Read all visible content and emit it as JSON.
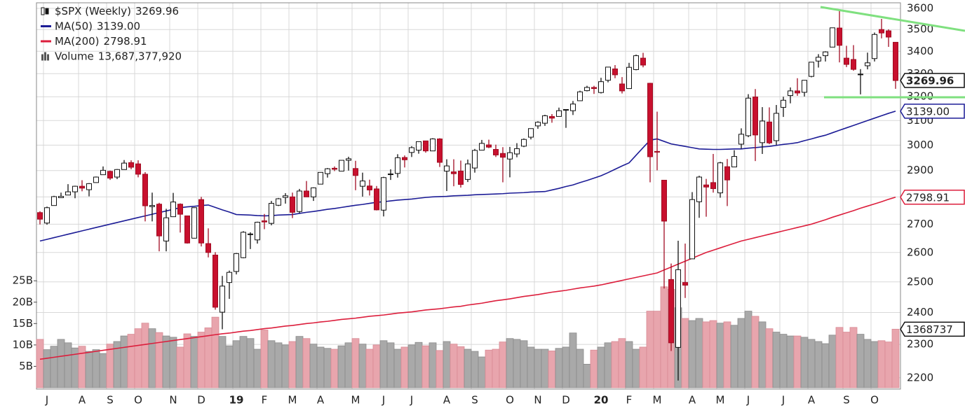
{
  "chart_data": {
    "type": "candlestick",
    "log": true,
    "grid": true,
    "ylim": [
      2167,
      3627
    ],
    "yticks": [
      2200,
      2300,
      2400,
      2500,
      2600,
      2700,
      2800,
      2900,
      3000,
      3100,
      3200,
      3300,
      3400,
      3500,
      3600
    ],
    "y2lim": [
      0,
      90
    ],
    "y2ticks": [
      {
        "value": 5,
        "label": "5B"
      },
      {
        "value": 10,
        "label": "10B"
      },
      {
        "value": 15,
        "label": "15B"
      },
      {
        "value": 20,
        "label": "20B"
      },
      {
        "value": 25,
        "label": "25B"
      }
    ],
    "categories": [
      null,
      "J",
      null,
      null,
      null,
      null,
      "A",
      null,
      null,
      null,
      "S",
      null,
      null,
      null,
      "O",
      null,
      null,
      null,
      null,
      "N",
      null,
      null,
      null,
      "D",
      null,
      null,
      null,
      null,
      "19",
      null,
      null,
      null,
      "F",
      null,
      null,
      null,
      "M",
      null,
      null,
      null,
      "A",
      null,
      null,
      null,
      null,
      "M",
      null,
      null,
      null,
      "J",
      null,
      null,
      null,
      "J",
      null,
      null,
      null,
      null,
      "A",
      null,
      null,
      null,
      "S",
      null,
      null,
      null,
      null,
      "O",
      null,
      null,
      null,
      "N",
      null,
      null,
      null,
      "D",
      null,
      null,
      null,
      null,
      "20",
      null,
      null,
      null,
      "F",
      null,
      null,
      null,
      "M",
      null,
      null,
      null,
      null,
      "A",
      null,
      null,
      null,
      "M",
      null,
      null,
      null,
      "J",
      null,
      null,
      null,
      null,
      "J",
      null,
      null,
      null,
      "A",
      null,
      null,
      null,
      null,
      "S",
      null,
      null,
      null,
      "O",
      null,
      null,
      null
    ],
    "series": [
      {
        "name": "$SPX (Weekly)",
        "type": "candlestick",
        "last_label": "3269.96",
        "up_color": "#ffffff",
        "down_color": "#c8102e",
        "open": [
          2742,
          2704,
          2768,
          2797,
          2807,
          2819,
          2840,
          2827,
          2854,
          2884,
          2897,
          2875,
          2904,
          2931,
          2926,
          2886,
          2764,
          2773,
          2640,
          2727,
          2773,
          2730,
          2650,
          2790,
          2631,
          2591,
          2401,
          2498,
          2535,
          2582,
          2664,
          2644,
          2712,
          2703,
          2769,
          2798,
          2800,
          2746,
          2822,
          2800,
          2848,
          2888,
          2909,
          2898,
          2940,
          2908,
          2840,
          2841,
          2830,
          2751,
          2886,
          2889,
          2951,
          2971,
          2980,
          3017,
          2977,
          3025,
          2898,
          2895,
          2898,
          2866,
          2910,
          2980,
          3001,
          2983,
          2967,
          2945,
          2965,
          2996,
          3032,
          3078,
          3089,
          3117,
          3117,
          3144,
          3141,
          3183,
          3226,
          3240,
          3218,
          3271,
          3321,
          3255,
          3235,
          3318,
          3369,
          3258,
          2975,
          2863,
          2508,
          2291,
          2498,
          2578,
          2782,
          2845,
          2854,
          2815,
          2915,
          2914,
          3004,
          3038,
          3199,
          3010,
          3094,
          3018,
          3155,
          3205,
          3225,
          3219,
          3288,
          3356,
          3380,
          3419,
          3507,
          3369,
          3363,
          3295,
          3335,
          3367,
          3500,
          3494,
          3441
        ],
        "high": [
          2747,
          2764,
          2804,
          2816,
          2848,
          2842,
          2863,
          2852,
          2877,
          2916,
          2900,
          2906,
          2941,
          2940,
          2940,
          2894,
          2816,
          2778,
          2756,
          2815,
          2776,
          2730,
          2760,
          2800,
          2685,
          2601,
          2520,
          2538,
          2598,
          2675,
          2671,
          2709,
          2737,
          2785,
          2796,
          2814,
          2816,
          2830,
          2860,
          2836,
          2893,
          2910,
          2916,
          2940,
          2954,
          2938,
          2892,
          2865,
          2841,
          2876,
          2905,
          2964,
          2959,
          2996,
          3014,
          3018,
          3028,
          3028,
          2944,
          2944,
          2939,
          2943,
          2985,
          3021,
          3022,
          3002,
          2992,
          2993,
          3008,
          3027,
          3067,
          3097,
          3124,
          3127,
          3154,
          3146,
          3182,
          3226,
          3247,
          3247,
          3282,
          3329,
          3338,
          3285,
          3348,
          3385,
          3393,
          3260,
          3137,
          2863,
          2562,
          2641,
          2631,
          2818,
          2880,
          2868,
          2965,
          2934,
          2945,
          2980,
          3068,
          3211,
          3233,
          3156,
          3155,
          3165,
          3200,
          3240,
          3280,
          3272,
          3352,
          3387,
          3400,
          3509,
          3588,
          3425,
          3428,
          3320,
          3394,
          3486,
          3550,
          3501,
          3441
        ],
        "low": [
          2699,
          2698,
          2768,
          2796,
          2808,
          2795,
          2821,
          2802,
          2853,
          2884,
          2864,
          2867,
          2904,
          2905,
          2874,
          2710,
          2710,
          2604,
          2604,
          2726,
          2670,
          2631,
          2649,
          2621,
          2583,
          2409,
          2347,
          2444,
          2525,
          2580,
          2612,
          2631,
          2682,
          2696,
          2766,
          2775,
          2722,
          2740,
          2800,
          2785,
          2848,
          2873,
          2898,
          2898,
          2900,
          2825,
          2801,
          2805,
          2750,
          2728,
          2864,
          2873,
          2912,
          2953,
          2966,
          2970,
          2976,
          2914,
          2822,
          2840,
          2835,
          2856,
          2892,
          2979,
          2988,
          2953,
          2855,
          2874,
          2952,
          2992,
          3023,
          3066,
          3078,
          3091,
          3117,
          3070,
          3123,
          3183,
          3223,
          3212,
          3214,
          3262,
          3280,
          3214,
          3235,
          3315,
          3328,
          2855,
          2901,
          2478,
          2280,
          2192,
          2447,
          2578,
          2723,
          2727,
          2816,
          2797,
          2766,
          2914,
          2986,
          3032,
          2937,
          2965,
          3004,
          3000,
          3115,
          3172,
          3204,
          3201,
          3284,
          3327,
          3354,
          3419,
          3350,
          3329,
          3313,
          3210,
          3319,
          3354,
          3459,
          3420,
          3234
        ],
        "close": [
          2718,
          2760,
          2801,
          2802,
          2819,
          2840,
          2833,
          2850,
          2875,
          2901,
          2871,
          2904,
          2929,
          2913,
          2886,
          2767,
          2768,
          2658,
          2723,
          2781,
          2736,
          2633,
          2760,
          2633,
          2600,
          2417,
          2486,
          2532,
          2596,
          2671,
          2665,
          2707,
          2708,
          2776,
          2793,
          2804,
          2743,
          2822,
          2800,
          2834,
          2893,
          2907,
          2905,
          2940,
          2946,
          2881,
          2860,
          2826,
          2752,
          2873,
          2887,
          2950,
          2942,
          2990,
          3014,
          2977,
          3025,
          2932,
          2918,
          2888,
          2847,
          2926,
          2979,
          3007,
          2992,
          2961,
          2952,
          2970,
          2986,
          3023,
          3067,
          3093,
          3120,
          3110,
          3141,
          3146,
          3169,
          3221,
          3240,
          3235,
          3265,
          3329,
          3295,
          3225,
          3328,
          3380,
          3338,
          2954,
          2972,
          2711,
          2305,
          2541,
          2489,
          2790,
          2875,
          2837,
          2831,
          2930,
          2864,
          2955,
          3044,
          3194,
          3041,
          3098,
          3009,
          3130,
          3185,
          3225,
          3216,
          3271,
          3351,
          3373,
          3397,
          3508,
          3427,
          3341,
          3319,
          3298,
          3348,
          3477,
          3484,
          3465,
          3269.96
        ]
      },
      {
        "name": "MA(50)",
        "type": "line",
        "color": "#1c1c96",
        "last_label": "3139.00",
        "values": [
          2640,
          2646,
          2652,
          2658,
          2664,
          2670,
          2676,
          2682,
          2688,
          2694,
          2700,
          2706,
          2712,
          2718,
          2724,
          2730,
          2736,
          2742,
          2748,
          2754,
          2760,
          2763,
          2765,
          2768,
          2770,
          2761,
          2752,
          2744,
          2735,
          2734,
          2733,
          2731,
          2730,
          2731,
          2733,
          2734,
          2735,
          2739,
          2743,
          2746,
          2750,
          2754,
          2757,
          2761,
          2765,
          2769,
          2772,
          2776,
          2780,
          2782,
          2785,
          2788,
          2790,
          2792,
          2795,
          2798,
          2800,
          2801,
          2802,
          2804,
          2805,
          2806,
          2808,
          2809,
          2810,
          2811,
          2812,
          2814,
          2815,
          2816,
          2818,
          2819,
          2820,
          2826,
          2832,
          2839,
          2845,
          2854,
          2862,
          2871,
          2880,
          2892,
          2905,
          2918,
          2930,
          2960,
          2990,
          3020,
          3025,
          3015,
          3005,
          3000,
          2995,
          2990,
          2985,
          2984,
          2983,
          2983,
          2984,
          2985,
          2985,
          2988,
          2990,
          2993,
          2995,
          2999,
          3003,
          3006,
          3010,
          3018,
          3025,
          3033,
          3040,
          3050,
          3060,
          3070,
          3080,
          3090,
          3100,
          3110,
          3120,
          3130,
          3139
        ]
      },
      {
        "name": "MA(200)",
        "type": "line",
        "color": "#dc1e3c",
        "last_label": "2798.91",
        "values": [
          2255,
          2258,
          2261,
          2264,
          2267,
          2270,
          2273,
          2276,
          2279,
          2282,
          2285,
          2288,
          2291,
          2294,
          2297,
          2300,
          2303,
          2306,
          2309,
          2312,
          2315,
          2318,
          2321,
          2324,
          2327,
          2330,
          2333,
          2335,
          2338,
          2341,
          2343,
          2346,
          2349,
          2351,
          2354,
          2357,
          2359,
          2362,
          2365,
          2367,
          2370,
          2372,
          2375,
          2378,
          2380,
          2382,
          2385,
          2388,
          2390,
          2392,
          2395,
          2398,
          2400,
          2402,
          2405,
          2408,
          2410,
          2412,
          2415,
          2418,
          2420,
          2424,
          2427,
          2430,
          2434,
          2438,
          2441,
          2444,
          2448,
          2452,
          2455,
          2458,
          2462,
          2466,
          2469,
          2472,
          2476,
          2480,
          2483,
          2486,
          2490,
          2495,
          2500,
          2505,
          2510,
          2515,
          2520,
          2525,
          2530,
          2540,
          2550,
          2560,
          2570,
          2580,
          2590,
          2600,
          2608,
          2616,
          2624,
          2632,
          2640,
          2646,
          2652,
          2658,
          2664,
          2670,
          2676,
          2682,
          2688,
          2694,
          2700,
          2708,
          2716,
          2725,
          2733,
          2741,
          2749,
          2758,
          2766,
          2774,
          2782,
          2791,
          2798.91
        ]
      },
      {
        "name": "Volume",
        "type": "bar",
        "axis": "y2",
        "up_color": "#a9a9a9",
        "down_color": "#e8a5ad",
        "last_label": "13,687,377,920",
        "tag_label": "1368737",
        "values": [
          11.3,
          8.9,
          9.7,
          11.3,
          10.5,
          9.3,
          9.7,
          8.5,
          8.9,
          8.0,
          10.2,
          10.8,
          12.1,
          12.5,
          13.8,
          15.1,
          13.8,
          12.9,
          12.1,
          11.8,
          9.5,
          12.6,
          12.0,
          13.0,
          14.0,
          16.5,
          12.0,
          9.8,
          11.0,
          12.0,
          11.5,
          9.0,
          13.5,
          11.0,
          10.5,
          10.0,
          10.8,
          12.0,
          11.5,
          10.2,
          9.5,
          9.2,
          9.0,
          9.8,
          10.5,
          11.5,
          10.2,
          9.0,
          10.0,
          11.0,
          10.5,
          9.0,
          9.5,
          10.0,
          10.6,
          9.8,
          10.5,
          8.7,
          10.8,
          10.2,
          9.6,
          9.0,
          8.5,
          7.2,
          8.8,
          9.0,
          10.7,
          11.5,
          11.3,
          11.0,
          9.5,
          9.0,
          9.0,
          8.6,
          9.2,
          9.5,
          12.8,
          9.0,
          5.5,
          8.8,
          9.5,
          10.5,
          10.8,
          11.5,
          10.8,
          9.0,
          9.5,
          17.9,
          17.9,
          23.6,
          23.0,
          18.7,
          16.2,
          15.7,
          16.2,
          15.4,
          15.7,
          15.1,
          15.4,
          14.6,
          16.2,
          17.9,
          16.7,
          15.4,
          13.8,
          13.0,
          12.5,
          12.1,
          12.1,
          11.8,
          11.3,
          10.8,
          10.3,
          12.3,
          14.1,
          13.0,
          14.1,
          12.5,
          11.3,
          10.8,
          11.0,
          10.7,
          13.68737792
        ]
      }
    ]
  }
}
